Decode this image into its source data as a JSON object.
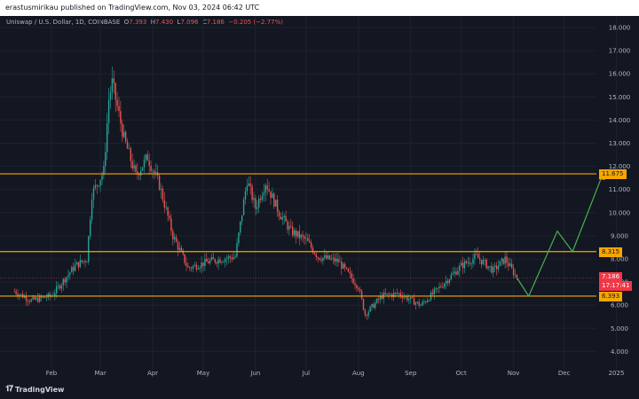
{
  "header": {
    "published": "erastusmirikau published on TradingView.com, Nov 03, 2024 06:42 UTC"
  },
  "legend": {
    "symbol": "Uniswap / U.S. Dollar, 1D, COINBASE",
    "o_label": "O",
    "o": "7.393",
    "h_label": "H",
    "h": "7.430",
    "l_label": "L",
    "l": "7.096",
    "c_label": "C",
    "c": "7.186",
    "change": "−0.205 (−2.77%)"
  },
  "price_tags": {
    "upper": "11.675",
    "middle": "8.315",
    "current": "7.186",
    "countdown": "17:17:41",
    "lower": "6.393"
  },
  "footer": {
    "brand": "TradingView"
  },
  "colors": {
    "background": "#131722",
    "level_line": "#f7a600",
    "projection": "#4caf50",
    "up_candle": "#26a69a",
    "down_candle": "#ef5350",
    "current_price": "#f23645"
  },
  "chart_data": {
    "type": "candlestick",
    "y_ticks": [
      "18.000",
      "17.000",
      "16.000",
      "15.000",
      "14.000",
      "13.000",
      "12.000",
      "11.000",
      "10.000",
      "9.000",
      "8.000",
      "7.000",
      "6.000",
      "5.000",
      "4.000"
    ],
    "x_ticks": [
      "Feb",
      "Mar",
      "Apr",
      "May",
      "Jun",
      "Jul",
      "Aug",
      "Sep",
      "Oct",
      "Nov",
      "Dec",
      "2025"
    ],
    "ylim": [
      3.5,
      18.5
    ],
    "horizontal_levels": [
      11.675,
      8.315,
      6.393
    ],
    "last_price": 7.186,
    "price_path": [
      [
        "2024-01-10",
        6.6
      ],
      [
        "2024-01-20",
        6.2
      ],
      [
        "2024-02-01",
        6.4
      ],
      [
        "2024-02-15",
        7.7
      ],
      [
        "2024-02-22",
        8.0
      ],
      [
        "2024-02-25",
        10.8
      ],
      [
        "2024-03-03",
        11.8
      ],
      [
        "2024-03-06",
        14.9
      ],
      [
        "2024-03-08",
        15.6
      ],
      [
        "2024-03-15",
        13.2
      ],
      [
        "2024-03-22",
        11.6
      ],
      [
        "2024-03-29",
        12.4
      ],
      [
        "2024-04-05",
        11.2
      ],
      [
        "2024-04-13",
        9.0
      ],
      [
        "2024-04-22",
        7.6
      ],
      [
        "2024-05-05",
        7.9
      ],
      [
        "2024-05-20",
        8.1
      ],
      [
        "2024-05-27",
        11.4
      ],
      [
        "2024-06-01",
        10.2
      ],
      [
        "2024-06-07",
        11.3
      ],
      [
        "2024-06-15",
        10.0
      ],
      [
        "2024-06-22",
        9.2
      ],
      [
        "2024-07-01",
        8.8
      ],
      [
        "2024-07-08",
        8.1
      ],
      [
        "2024-07-20",
        7.9
      ],
      [
        "2024-08-01",
        6.8
      ],
      [
        "2024-08-05",
        5.6
      ],
      [
        "2024-08-15",
        6.4
      ],
      [
        "2024-08-25",
        6.5
      ],
      [
        "2024-09-07",
        6.0
      ],
      [
        "2024-09-20",
        6.9
      ],
      [
        "2024-10-01",
        7.7
      ],
      [
        "2024-10-10",
        8.1
      ],
      [
        "2024-10-20",
        7.5
      ],
      [
        "2024-10-27",
        8.0
      ],
      [
        "2024-11-03",
        7.186
      ]
    ],
    "projection_path": [
      [
        "2024-11-03",
        7.186
      ],
      [
        "2024-11-10",
        6.393
      ],
      [
        "2024-11-27",
        9.2
      ],
      [
        "2024-12-06",
        8.315
      ],
      [
        "2024-12-24",
        11.675
      ]
    ]
  }
}
